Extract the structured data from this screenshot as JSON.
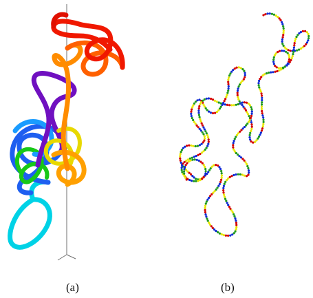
{
  "captions": {
    "left": "(a)",
    "right": "(b)"
  },
  "palettes": {
    "tube_rainbow": [
      "#00d8e8",
      "#1a9cff",
      "#1f43e8",
      "#7a10c8",
      "#18c818",
      "#e6e600",
      "#ff9a00",
      "#ff6a00",
      "#ff1a00"
    ],
    "dotted_chain": [
      "#d40000",
      "#0f2bd6",
      "#1f9a1f",
      "#e8e800"
    ]
  },
  "axis_color": "#707070"
}
